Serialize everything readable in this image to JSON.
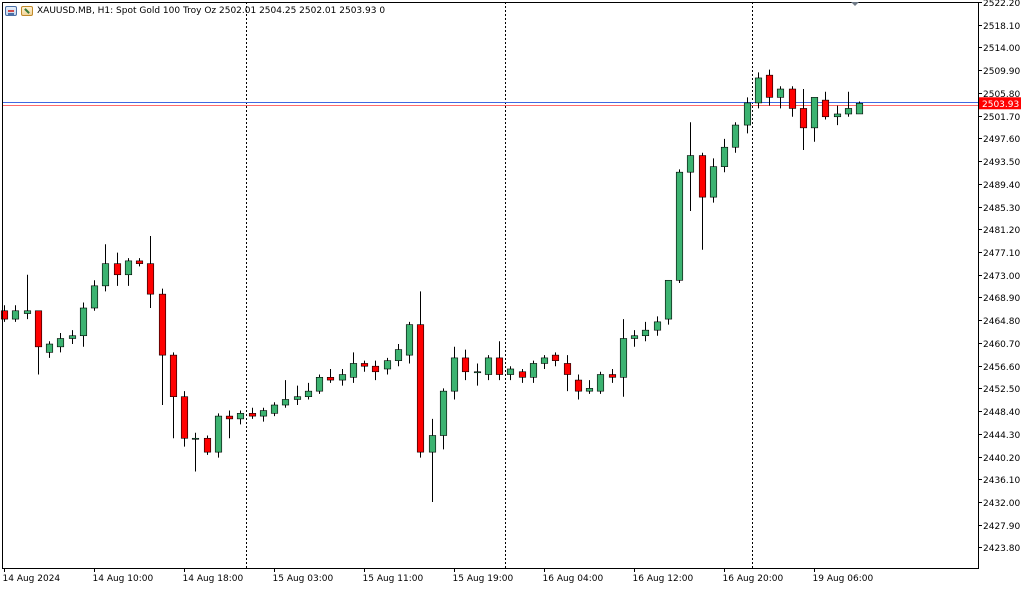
{
  "header": {
    "text": "XAUUSD.MB, H1:  Spot Gold 100 Troy Oz  2502.01 2504.25 2502.01 2503.93  0"
  },
  "colors": {
    "bull": "#3CB371",
    "bear": "#FF0000",
    "outline": "#000000",
    "grid_separator": "#000000",
    "bid_line": "#4169E1",
    "ask_line": "#FF6B6B",
    "price_tag": "#FF0000"
  },
  "chart_data": {
    "type": "candlestick",
    "symbol": "XAUUSD.MB",
    "timeframe": "H1",
    "ylim": [
      2420.1,
      2522.2
    ],
    "y_ticks": [
      2522.2,
      2518.1,
      2514.0,
      2509.9,
      2505.8,
      2501.7,
      2497.6,
      2493.5,
      2489.4,
      2485.3,
      2481.2,
      2477.1,
      2473.0,
      2468.9,
      2464.8,
      2460.7,
      2456.6,
      2452.5,
      2448.4,
      2444.3,
      2440.2,
      2436.1,
      2432.0,
      2427.9,
      2423.8
    ],
    "y_tick_labels": [
      "2522.20",
      "2518.10",
      "2514.00",
      "2509.90",
      "2505.80",
      "2501.70",
      "2497.60",
      "2493.50",
      "2489.40",
      "2485.30",
      "2481.20",
      "2477.10",
      "2473.00",
      "2468.90",
      "2464.80",
      "2460.70",
      "2456.60",
      "2452.50",
      "2448.40",
      "2444.30",
      "2440.20",
      "2436.10",
      "2432.00",
      "2427.90",
      "2423.80"
    ],
    "x_ticks": [
      {
        "bar": 0,
        "label": "14 Aug 2024"
      },
      {
        "bar": 8,
        "label": "14 Aug 10:00"
      },
      {
        "bar": 16,
        "label": "14 Aug 18:00"
      },
      {
        "bar": 24,
        "label": "15 Aug 03:00"
      },
      {
        "bar": 32,
        "label": "15 Aug 11:00"
      },
      {
        "bar": 40,
        "label": "15 Aug 19:00"
      },
      {
        "bar": 48,
        "label": "16 Aug 04:00"
      },
      {
        "bar": 56,
        "label": "16 Aug 12:00"
      },
      {
        "bar": 64,
        "label": "16 Aug 20:00"
      },
      {
        "bar": 72,
        "label": "19 Aug 06:00"
      }
    ],
    "day_separators": [
      21.5,
      44.5,
      66.5
    ],
    "current_price": 2503.93,
    "current_price_label": "2503.93",
    "bid_price": 2504.25,
    "ask_price": 2503.7,
    "candles": [
      {
        "o": 2466.5,
        "h": 2467.5,
        "l": 2464.5,
        "c": 2465.0
      },
      {
        "o": 2465.0,
        "h": 2467.5,
        "l": 2464.5,
        "c": 2466.5
      },
      {
        "o": 2466.0,
        "h": 2473.0,
        "l": 2465.0,
        "c": 2466.5
      },
      {
        "o": 2466.5,
        "h": 2466.5,
        "l": 2455.0,
        "c": 2460.0
      },
      {
        "o": 2459.0,
        "h": 2461.0,
        "l": 2458.0,
        "c": 2460.5
      },
      {
        "o": 2460.0,
        "h": 2462.5,
        "l": 2459.0,
        "c": 2461.5
      },
      {
        "o": 2461.5,
        "h": 2463.0,
        "l": 2460.5,
        "c": 2462.0
      },
      {
        "o": 2462.0,
        "h": 2468.0,
        "l": 2460.0,
        "c": 2467.0
      },
      {
        "o": 2467.0,
        "h": 2472.0,
        "l": 2466.5,
        "c": 2471.0
      },
      {
        "o": 2471.0,
        "h": 2478.5,
        "l": 2470.0,
        "c": 2475.0
      },
      {
        "o": 2475.0,
        "h": 2477.0,
        "l": 2471.0,
        "c": 2473.0
      },
      {
        "o": 2473.0,
        "h": 2476.0,
        "l": 2471.0,
        "c": 2475.5
      },
      {
        "o": 2475.5,
        "h": 2476.0,
        "l": 2474.5,
        "c": 2475.0
      },
      {
        "o": 2475.0,
        "h": 2480.0,
        "l": 2467.0,
        "c": 2469.5
      },
      {
        "o": 2469.5,
        "h": 2470.5,
        "l": 2449.5,
        "c": 2458.5
      },
      {
        "o": 2458.5,
        "h": 2459.0,
        "l": 2443.5,
        "c": 2451.0
      },
      {
        "o": 2451.0,
        "h": 2452.0,
        "l": 2442.0,
        "c": 2443.5
      },
      {
        "o": 2443.5,
        "h": 2444.5,
        "l": 2437.5,
        "c": 2443.5
      },
      {
        "o": 2443.5,
        "h": 2444.0,
        "l": 2440.5,
        "c": 2441.0
      },
      {
        "o": 2441.0,
        "h": 2448.0,
        "l": 2440.0,
        "c": 2447.5
      },
      {
        "o": 2447.5,
        "h": 2448.5,
        "l": 2443.5,
        "c": 2447.0
      },
      {
        "o": 2447.0,
        "h": 2448.5,
        "l": 2446.0,
        "c": 2448.0
      },
      {
        "o": 2448.0,
        "h": 2449.0,
        "l": 2447.0,
        "c": 2447.5
      },
      {
        "o": 2447.5,
        "h": 2449.0,
        "l": 2446.5,
        "c": 2448.5
      },
      {
        "o": 2448.0,
        "h": 2450.0,
        "l": 2447.5,
        "c": 2449.5
      },
      {
        "o": 2449.5,
        "h": 2454.0,
        "l": 2449.0,
        "c": 2450.5
      },
      {
        "o": 2450.5,
        "h": 2453.0,
        "l": 2449.5,
        "c": 2451.0
      },
      {
        "o": 2451.0,
        "h": 2453.5,
        "l": 2450.5,
        "c": 2452.0
      },
      {
        "o": 2452.0,
        "h": 2455.0,
        "l": 2451.5,
        "c": 2454.5
      },
      {
        "o": 2454.5,
        "h": 2456.0,
        "l": 2453.5,
        "c": 2454.0
      },
      {
        "o": 2454.0,
        "h": 2456.0,
        "l": 2453.0,
        "c": 2455.0
      },
      {
        "o": 2454.5,
        "h": 2459.0,
        "l": 2453.5,
        "c": 2457.0
      },
      {
        "o": 2457.0,
        "h": 2457.5,
        "l": 2455.5,
        "c": 2456.5
      },
      {
        "o": 2456.5,
        "h": 2457.5,
        "l": 2454.0,
        "c": 2455.5
      },
      {
        "o": 2456.0,
        "h": 2458.0,
        "l": 2455.0,
        "c": 2457.5
      },
      {
        "o": 2457.5,
        "h": 2460.5,
        "l": 2456.5,
        "c": 2459.5
      },
      {
        "o": 2458.5,
        "h": 2464.5,
        "l": 2457.0,
        "c": 2464.0
      },
      {
        "o": 2464.0,
        "h": 2470.0,
        "l": 2440.0,
        "c": 2441.0
      },
      {
        "o": 2441.0,
        "h": 2447.0,
        "l": 2432.0,
        "c": 2444.0
      },
      {
        "o": 2444.0,
        "h": 2452.5,
        "l": 2441.5,
        "c": 2452.0
      },
      {
        "o": 2452.0,
        "h": 2460.0,
        "l": 2450.5,
        "c": 2458.0
      },
      {
        "o": 2458.0,
        "h": 2459.5,
        "l": 2454.0,
        "c": 2455.5
      },
      {
        "o": 2455.5,
        "h": 2457.0,
        "l": 2453.0,
        "c": 2455.5
      },
      {
        "o": 2455.0,
        "h": 2458.5,
        "l": 2454.0,
        "c": 2458.0
      },
      {
        "o": 2458.0,
        "h": 2461.0,
        "l": 2454.0,
        "c": 2455.0
      },
      {
        "o": 2455.0,
        "h": 2456.5,
        "l": 2454.0,
        "c": 2456.0
      },
      {
        "o": 2455.5,
        "h": 2456.0,
        "l": 2453.5,
        "c": 2454.5
      },
      {
        "o": 2454.5,
        "h": 2457.5,
        "l": 2453.5,
        "c": 2457.0
      },
      {
        "o": 2457.0,
        "h": 2458.5,
        "l": 2456.0,
        "c": 2458.0
      },
      {
        "o": 2458.5,
        "h": 2459.0,
        "l": 2456.5,
        "c": 2457.5
      },
      {
        "o": 2457.0,
        "h": 2458.5,
        "l": 2452.0,
        "c": 2455.0
      },
      {
        "o": 2454.0,
        "h": 2455.0,
        "l": 2450.5,
        "c": 2452.0
      },
      {
        "o": 2452.0,
        "h": 2454.0,
        "l": 2451.5,
        "c": 2452.5
      },
      {
        "o": 2452.0,
        "h": 2455.5,
        "l": 2451.5,
        "c": 2455.0
      },
      {
        "o": 2455.0,
        "h": 2456.0,
        "l": 2453.5,
        "c": 2454.5
      },
      {
        "o": 2454.5,
        "h": 2465.0,
        "l": 2451.0,
        "c": 2461.5
      },
      {
        "o": 2461.5,
        "h": 2463.0,
        "l": 2460.0,
        "c": 2462.0
      },
      {
        "o": 2462.0,
        "h": 2464.5,
        "l": 2461.0,
        "c": 2463.0
      },
      {
        "o": 2463.0,
        "h": 2465.5,
        "l": 2462.0,
        "c": 2464.5
      },
      {
        "o": 2465.0,
        "h": 2472.0,
        "l": 2464.0,
        "c": 2472.0
      },
      {
        "o": 2472.0,
        "h": 2492.0,
        "l": 2471.5,
        "c": 2491.5
      },
      {
        "o": 2491.5,
        "h": 2500.5,
        "l": 2484.5,
        "c": 2494.5
      },
      {
        "o": 2494.5,
        "h": 2495.0,
        "l": 2477.5,
        "c": 2487.0
      },
      {
        "o": 2487.0,
        "h": 2494.0,
        "l": 2486.0,
        "c": 2492.5
      },
      {
        "o": 2492.5,
        "h": 2497.5,
        "l": 2491.5,
        "c": 2496.0
      },
      {
        "o": 2496.0,
        "h": 2500.5,
        "l": 2495.0,
        "c": 2500.0
      },
      {
        "o": 2500.0,
        "h": 2505.0,
        "l": 2498.5,
        "c": 2504.0
      },
      {
        "o": 2504.0,
        "h": 2509.5,
        "l": 2503.0,
        "c": 2508.5
      },
      {
        "o": 2509.0,
        "h": 2510.0,
        "l": 2503.5,
        "c": 2505.0
      },
      {
        "o": 2505.0,
        "h": 2507.0,
        "l": 2503.0,
        "c": 2506.5
      },
      {
        "o": 2506.5,
        "h": 2507.0,
        "l": 2501.5,
        "c": 2503.0
      },
      {
        "o": 2503.0,
        "h": 2506.5,
        "l": 2495.5,
        "c": 2499.5
      },
      {
        "o": 2499.5,
        "h": 2505.0,
        "l": 2497.0,
        "c": 2505.0
      },
      {
        "o": 2504.5,
        "h": 2506.0,
        "l": 2501.0,
        "c": 2501.5
      },
      {
        "o": 2501.5,
        "h": 2503.5,
        "l": 2500.0,
        "c": 2502.0
      },
      {
        "o": 2502.0,
        "h": 2506.0,
        "l": 2501.5,
        "c": 2503.0
      },
      {
        "o": 2502.01,
        "h": 2504.25,
        "l": 2502.01,
        "c": 2503.93
      }
    ]
  }
}
